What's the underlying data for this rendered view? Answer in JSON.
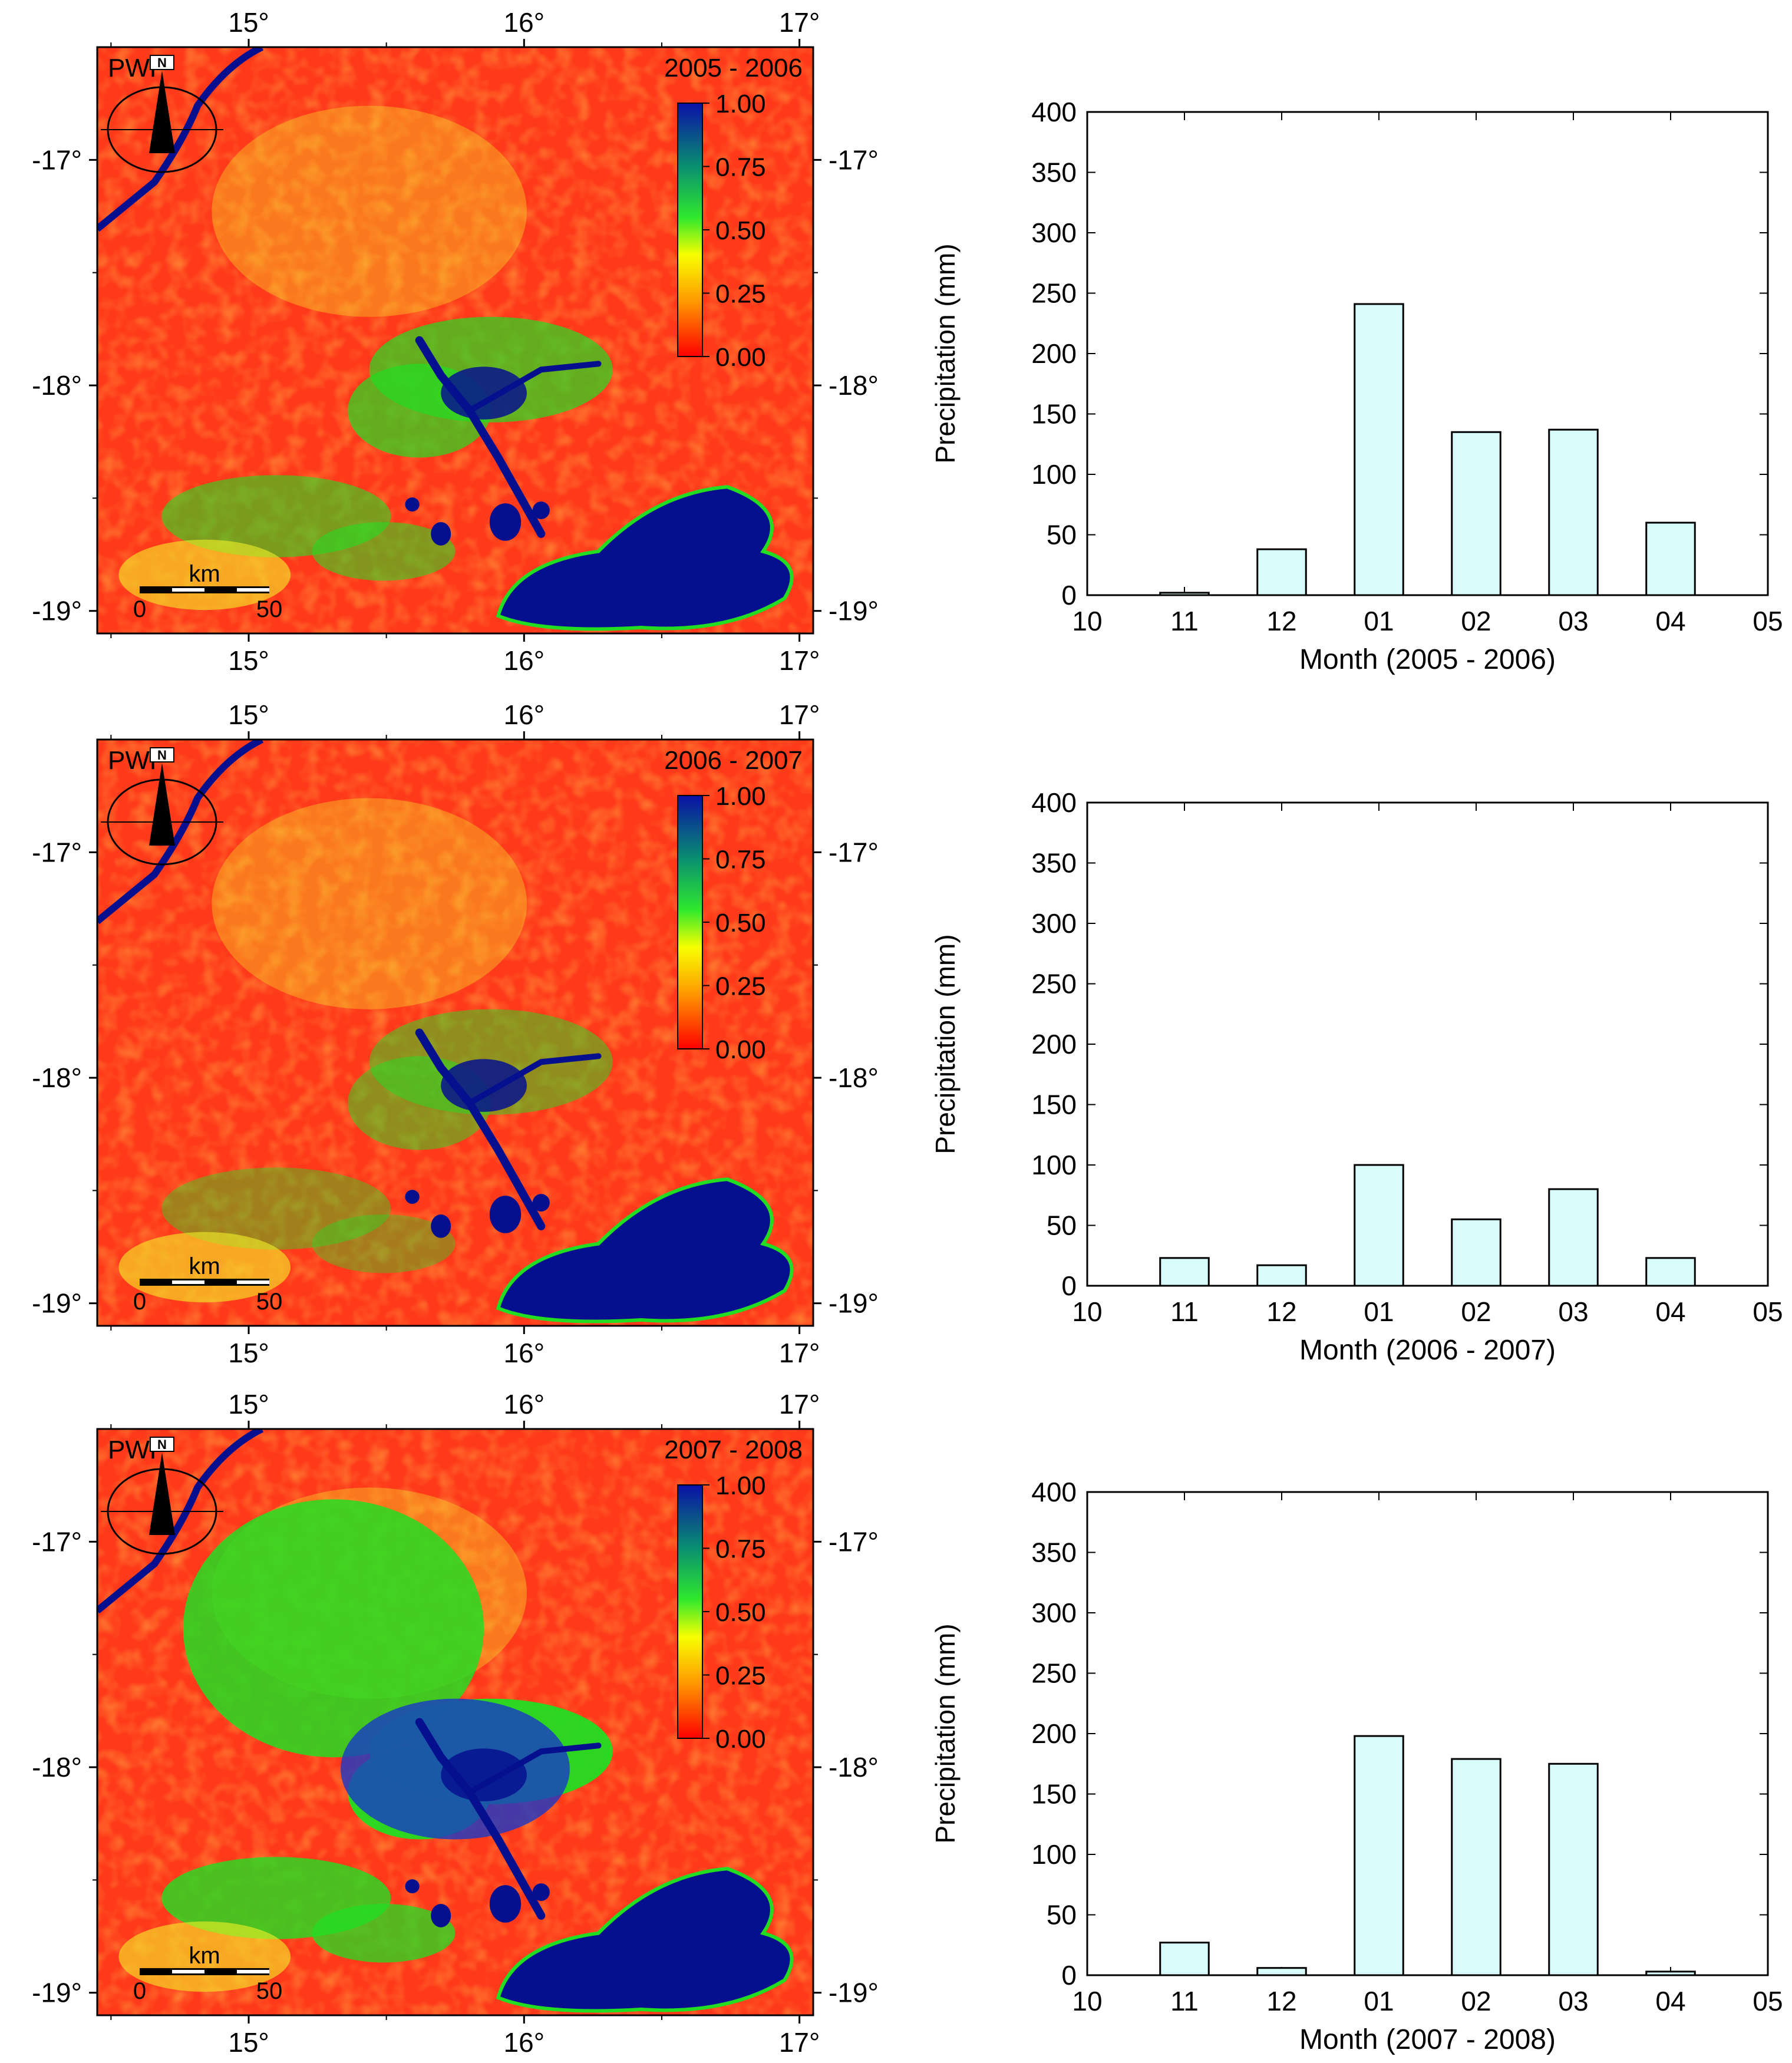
{
  "map_panels": [
    {
      "period": "2005 - 2006",
      "map_label": "PWP",
      "lon_ticks": [
        "15°",
        "16°",
        "17°"
      ],
      "lat_ticks": [
        "-17°",
        "-18°",
        "-19°"
      ],
      "colorbar_ticks": [
        "1.00",
        "0.75",
        "0.50",
        "0.25",
        "0.00"
      ],
      "scalebar_unit": "km",
      "scalebar_start": "0",
      "scalebar_end": "50",
      "north_letter": "N"
    },
    {
      "period": "2006 - 2007",
      "map_label": "PWP",
      "lon_ticks": [
        "15°",
        "16°",
        "17°"
      ],
      "lat_ticks": [
        "-17°",
        "-18°",
        "-19°"
      ],
      "colorbar_ticks": [
        "1.00",
        "0.75",
        "0.50",
        "0.25",
        "0.00"
      ],
      "scalebar_unit": "km",
      "scalebar_start": "0",
      "scalebar_end": "50",
      "north_letter": "N"
    },
    {
      "period": "2007 - 2008",
      "map_label": "PWP",
      "lon_ticks": [
        "15°",
        "16°",
        "17°"
      ],
      "lat_ticks": [
        "-17°",
        "-18°",
        "-19°"
      ],
      "colorbar_ticks": [
        "1.00",
        "0.75",
        "0.50",
        "0.25",
        "0.00"
      ],
      "scalebar_unit": "km",
      "scalebar_start": "0",
      "scalebar_end": "50",
      "north_letter": "N"
    }
  ],
  "chart_data": [
    {
      "type": "bar",
      "xlabel": "Month (2005 - 2006)",
      "ylabel": "Precipitation (mm)",
      "x_ticks": [
        "10",
        "11",
        "12",
        "01",
        "02",
        "03",
        "04",
        "05"
      ],
      "categories": [
        "11",
        "12",
        "01",
        "02",
        "03",
        "04"
      ],
      "values": [
        2,
        38,
        241,
        135,
        137,
        60
      ],
      "ylim": [
        0,
        400
      ],
      "y_ticks": [
        0,
        50,
        100,
        150,
        200,
        250,
        300,
        350,
        400
      ]
    },
    {
      "type": "bar",
      "xlabel": "Month (2006 - 2007)",
      "ylabel": "Precipitation (mm)",
      "x_ticks": [
        "10",
        "11",
        "12",
        "01",
        "02",
        "03",
        "04",
        "05"
      ],
      "categories": [
        "11",
        "12",
        "01",
        "02",
        "03",
        "04"
      ],
      "values": [
        23,
        17,
        100,
        55,
        80,
        23
      ],
      "ylim": [
        0,
        400
      ],
      "y_ticks": [
        0,
        50,
        100,
        150,
        200,
        250,
        300,
        350,
        400
      ]
    },
    {
      "type": "bar",
      "xlabel": "Month (2007 - 2008)",
      "ylabel": "Precipitation (mm)",
      "x_ticks": [
        "10",
        "11",
        "12",
        "01",
        "02",
        "03",
        "04",
        "05"
      ],
      "categories": [
        "11",
        "12",
        "01",
        "02",
        "03",
        "04"
      ],
      "values": [
        27,
        6,
        198,
        179,
        175,
        3
      ],
      "ylim": [
        0,
        400
      ],
      "y_ticks": [
        0,
        50,
        100,
        150,
        200,
        250,
        300,
        350,
        400
      ]
    }
  ],
  "colors": {
    "bar_fill": "#d8fcfc",
    "bar_stroke": "#000000",
    "map_red": "#ff3a1a",
    "map_water": "#06108e",
    "map_green": "#22dd22",
    "map_yellow": "#f4f028"
  }
}
